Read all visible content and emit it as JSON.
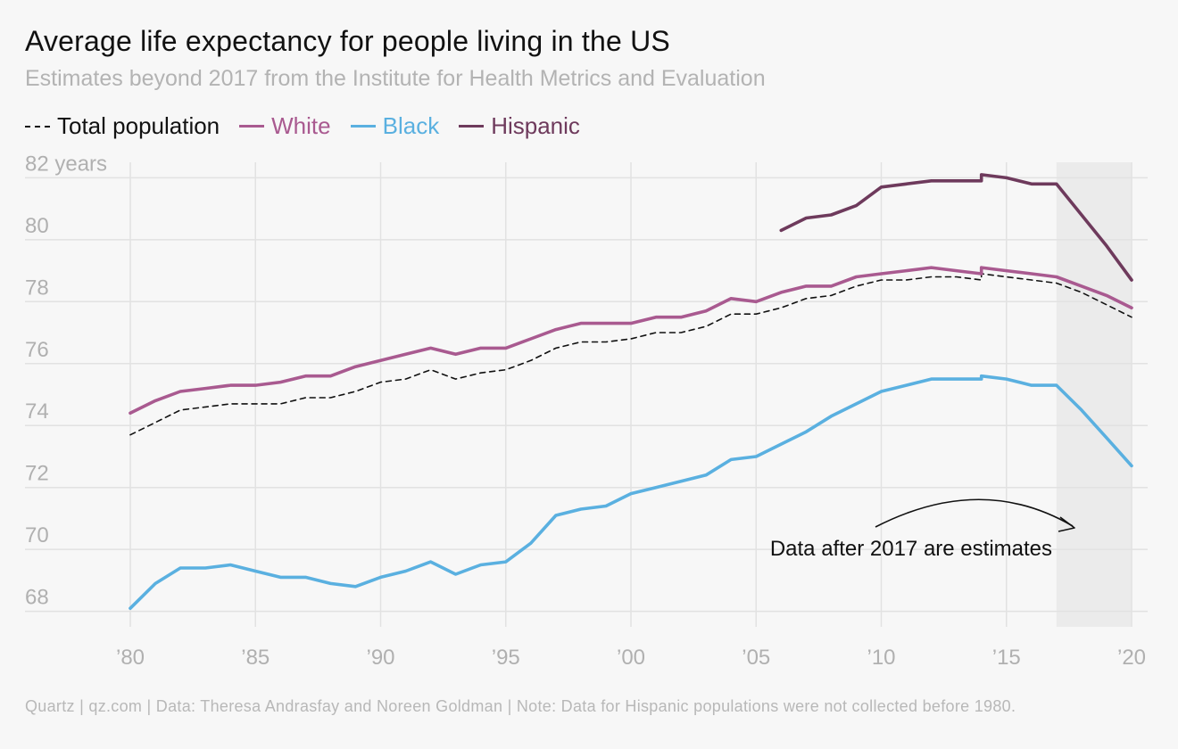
{
  "header": {
    "title": "Average life expectancy for people living in the US",
    "subtitle": "Estimates beyond 2017 from the Institute for Health Metrics and Evaluation"
  },
  "legend": [
    {
      "label": "Total population",
      "color": "#111111",
      "style": "dashed"
    },
    {
      "label": "White",
      "color": "#a95a90",
      "style": "solid"
    },
    {
      "label": "Black",
      "color": "#5ab0e0",
      "style": "solid"
    },
    {
      "label": "Hispanic",
      "color": "#6e3a5c",
      "style": "solid"
    }
  ],
  "footer": "Quartz | qz.com | Data: Theresa Andrasfay and Noreen Goldman | Note: Data for Hispanic populations were not collected before 1980.",
  "chart_data": {
    "type": "line",
    "title": "Average life expectancy for people living in the US",
    "subtitle": "Estimates beyond 2017 from the Institute for Health Metrics and Evaluation",
    "xlim": [
      1980,
      2020
    ],
    "ylim": [
      67.5,
      82.5
    ],
    "grid": true,
    "legend_position": "top-left",
    "x_ticks": [
      1980,
      1985,
      1990,
      1995,
      2000,
      2005,
      2010,
      2015,
      2020
    ],
    "x_tick_labels": [
      "’80",
      "’85",
      "’90",
      "’95",
      "’00",
      "’05",
      "’10",
      "’15",
      "’20"
    ],
    "y_ticks": [
      68,
      70,
      72,
      74,
      76,
      78,
      80,
      82
    ],
    "y_tick_labels": [
      "68",
      "70",
      "72",
      "74",
      "76",
      "78",
      "80",
      "82 years"
    ],
    "estimate_region": [
      2017,
      2020
    ],
    "annotation": "Data after 2017 are estimates",
    "series": [
      {
        "name": "Total population",
        "color": "#111111",
        "dashed": true,
        "points": [
          [
            1980,
            73.7
          ],
          [
            1981,
            74.1
          ],
          [
            1982,
            74.5
          ],
          [
            1983,
            74.6
          ],
          [
            1984,
            74.7
          ],
          [
            1985,
            74.7
          ],
          [
            1986,
            74.7
          ],
          [
            1987,
            74.9
          ],
          [
            1988,
            74.9
          ],
          [
            1989,
            75.1
          ],
          [
            1990,
            75.4
          ],
          [
            1991,
            75.5
          ],
          [
            1992,
            75.8
          ],
          [
            1993,
            75.5
          ],
          [
            1994,
            75.7
          ],
          [
            1995,
            75.8
          ],
          [
            1996,
            76.1
          ],
          [
            1997,
            76.5
          ],
          [
            1998,
            76.7
          ],
          [
            1999,
            76.7
          ],
          [
            2000,
            76.8
          ],
          [
            2001,
            77.0
          ],
          [
            2002,
            77.0
          ],
          [
            2003,
            77.2
          ],
          [
            2004,
            77.6
          ],
          [
            2005,
            77.6
          ],
          [
            2006,
            77.8
          ],
          [
            2007,
            78.1
          ],
          [
            2008,
            78.2
          ],
          [
            2009,
            78.5
          ],
          [
            2010,
            78.7
          ],
          [
            2011,
            78.7
          ],
          [
            2012,
            78.8
          ],
          [
            2013,
            78.8
          ],
          [
            2014,
            78.7
          ],
          [
            2014,
            78.9
          ],
          [
            2015,
            78.8
          ],
          [
            2016,
            78.7
          ],
          [
            2017,
            78.6
          ],
          [
            2018,
            78.3
          ],
          [
            2019,
            77.9
          ],
          [
            2020,
            77.5
          ]
        ]
      },
      {
        "name": "White",
        "color": "#a95a90",
        "dashed": false,
        "points": [
          [
            1980,
            74.4
          ],
          [
            1981,
            74.8
          ],
          [
            1982,
            75.1
          ],
          [
            1983,
            75.2
          ],
          [
            1984,
            75.3
          ],
          [
            1985,
            75.3
          ],
          [
            1986,
            75.4
          ],
          [
            1987,
            75.6
          ],
          [
            1988,
            75.6
          ],
          [
            1989,
            75.9
          ],
          [
            1990,
            76.1
          ],
          [
            1991,
            76.3
          ],
          [
            1992,
            76.5
          ],
          [
            1993,
            76.3
          ],
          [
            1994,
            76.5
          ],
          [
            1995,
            76.5
          ],
          [
            1996,
            76.8
          ],
          [
            1997,
            77.1
          ],
          [
            1998,
            77.3
          ],
          [
            1999,
            77.3
          ],
          [
            2000,
            77.3
          ],
          [
            2001,
            77.5
          ],
          [
            2002,
            77.5
          ],
          [
            2003,
            77.7
          ],
          [
            2004,
            78.1
          ],
          [
            2005,
            78.0
          ],
          [
            2006,
            78.3
          ],
          [
            2007,
            78.5
          ],
          [
            2008,
            78.5
          ],
          [
            2009,
            78.8
          ],
          [
            2010,
            78.9
          ],
          [
            2011,
            79.0
          ],
          [
            2012,
            79.1
          ],
          [
            2013,
            79.0
          ],
          [
            2014,
            78.9
          ],
          [
            2014,
            79.1
          ],
          [
            2015,
            79.0
          ],
          [
            2016,
            78.9
          ],
          [
            2017,
            78.8
          ],
          [
            2018,
            78.5
          ],
          [
            2019,
            78.2
          ],
          [
            2020,
            77.8
          ]
        ]
      },
      {
        "name": "Black",
        "color": "#5ab0e0",
        "dashed": false,
        "points": [
          [
            1980,
            68.1
          ],
          [
            1981,
            68.9
          ],
          [
            1982,
            69.4
          ],
          [
            1983,
            69.4
          ],
          [
            1984,
            69.5
          ],
          [
            1985,
            69.3
          ],
          [
            1986,
            69.1
          ],
          [
            1987,
            69.1
          ],
          [
            1988,
            68.9
          ],
          [
            1989,
            68.8
          ],
          [
            1990,
            69.1
          ],
          [
            1991,
            69.3
          ],
          [
            1992,
            69.6
          ],
          [
            1993,
            69.2
          ],
          [
            1994,
            69.5
          ],
          [
            1995,
            69.6
          ],
          [
            1996,
            70.2
          ],
          [
            1997,
            71.1
          ],
          [
            1998,
            71.3
          ],
          [
            1999,
            71.4
          ],
          [
            2000,
            71.8
          ],
          [
            2001,
            72.0
          ],
          [
            2002,
            72.2
          ],
          [
            2003,
            72.4
          ],
          [
            2004,
            72.9
          ],
          [
            2005,
            73.0
          ],
          [
            2006,
            73.4
          ],
          [
            2007,
            73.8
          ],
          [
            2008,
            74.3
          ],
          [
            2009,
            74.7
          ],
          [
            2010,
            75.1
          ],
          [
            2011,
            75.3
          ],
          [
            2012,
            75.5
          ],
          [
            2013,
            75.5
          ],
          [
            2014,
            75.5
          ],
          [
            2014,
            75.6
          ],
          [
            2015,
            75.5
          ],
          [
            2016,
            75.3
          ],
          [
            2017,
            75.3
          ],
          [
            2018,
            74.5
          ],
          [
            2019,
            73.6
          ],
          [
            2020,
            72.7
          ]
        ]
      },
      {
        "name": "Hispanic",
        "color": "#6e3a5c",
        "dashed": false,
        "points": [
          [
            2006,
            80.3
          ],
          [
            2007,
            80.7
          ],
          [
            2008,
            80.8
          ],
          [
            2009,
            81.1
          ],
          [
            2010,
            81.7
          ],
          [
            2011,
            81.8
          ],
          [
            2012,
            81.9
          ],
          [
            2013,
            81.9
          ],
          [
            2014,
            81.9
          ],
          [
            2014,
            82.1
          ],
          [
            2015,
            82.0
          ],
          [
            2016,
            81.8
          ],
          [
            2017,
            81.8
          ],
          [
            2018,
            80.8
          ],
          [
            2019,
            79.8
          ],
          [
            2020,
            78.7
          ]
        ]
      }
    ]
  }
}
